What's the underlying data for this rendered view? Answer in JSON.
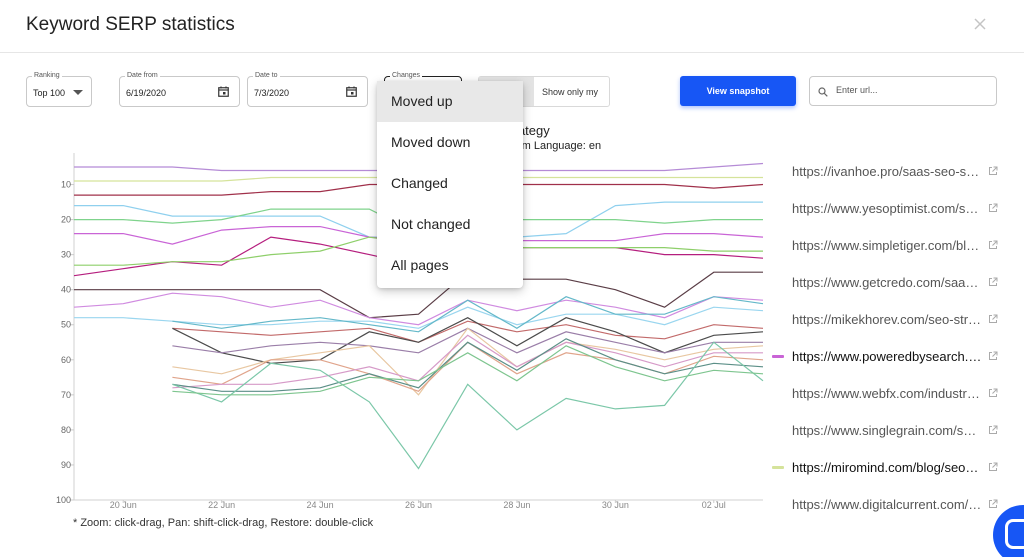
{
  "modal": {
    "title": "Keyword SERP statistics"
  },
  "filters": {
    "ranking": {
      "label": "Ranking",
      "value": "Top 100"
    },
    "date_from": {
      "label": "Date from",
      "value": "6/19/2020"
    },
    "date_to": {
      "label": "Date to",
      "value": "7/3/2020"
    },
    "changes": {
      "label": "Changes"
    },
    "toggle_label": "Show only my",
    "view_snapshot": "View snapshot",
    "search_placeholder": "Enter url..."
  },
  "changes_menu": {
    "items": [
      "Moved up",
      "Moved down",
      "Changed",
      "Not changed",
      "All pages"
    ],
    "selected": "Moved up"
  },
  "chart_header": {
    "title_fragment": "trategy",
    "subtitle_fragment": "com Language: en"
  },
  "chart_hint": "* Zoom: click-drag, Pan: shift-click-drag, Restore: double-click",
  "legend": [
    {
      "url": "https://ivanhoe.pro/saas-seo-strategy/",
      "color": "#b58bd6",
      "active": false
    },
    {
      "url": "https://www.yesoptimist.com/seo-strategy/",
      "color": "#8fd0ee",
      "active": false
    },
    {
      "url": "https://www.simpletiger.com/blog/saas-seo",
      "color": "#7fc49a",
      "active": false
    },
    {
      "url": "https://www.getcredo.com/saas-seo-strategy/",
      "color": "#c9a3c9",
      "active": false
    },
    {
      "url": "https://mikekhorev.com/seo-strategy",
      "color": "#9b97a8",
      "active": false
    },
    {
      "url": "https://www.poweredbysearch.com/blog/saas-seo/",
      "color": "#c964d6",
      "active": true
    },
    {
      "url": "https://www.webfx.com/industries/saas-seo",
      "color": "#e0a48b",
      "active": false
    },
    {
      "url": "https://www.singlegrain.com/saas/saas-seo/",
      "color": "#a7c0de",
      "active": false
    },
    {
      "url": "https://miromind.com/blog/seo-saas",
      "color": "#d5e39b",
      "active": true
    },
    {
      "url": "https://www.digitalcurrent.com/seo/",
      "color": "#b8a7cf",
      "active": false
    }
  ],
  "chart_data": {
    "type": "line",
    "x": [
      "19 Jun",
      "20 Jun",
      "21 Jun",
      "22 Jun",
      "23 Jun",
      "24 Jun",
      "25 Jun",
      "26 Jun",
      "27 Jun",
      "28 Jun",
      "29 Jun",
      "30 Jun",
      "01 Jul",
      "02 Jul",
      "03 Jul"
    ],
    "x_tick_labels": [
      "20 Jun",
      "22 Jun",
      "24 Jun",
      "26 Jun",
      "28 Jun",
      "30 Jun",
      "02 Jul"
    ],
    "y_tick_labels": [
      "10",
      "20",
      "30",
      "40",
      "50",
      "60",
      "70",
      "80",
      "90",
      "100"
    ],
    "ylim": [
      1,
      100
    ],
    "y_inverted": true,
    "grid": false,
    "series": [
      {
        "color": "#b58bd6",
        "values": [
          5,
          5,
          5,
          6,
          6,
          6,
          6,
          6,
          6,
          6,
          6,
          6,
          6,
          5,
          4
        ]
      },
      {
        "color": "#d5e39b",
        "values": [
          9,
          9,
          9,
          9,
          8,
          8,
          8,
          8,
          8,
          8,
          8,
          8,
          8,
          8,
          8
        ]
      },
      {
        "color": "#a0304a",
        "values": [
          13,
          13,
          13,
          13,
          12,
          12,
          10,
          10,
          10,
          10,
          10,
          10,
          10,
          11,
          10
        ]
      },
      {
        "color": "#8fd0ee",
        "values": [
          16,
          16,
          19,
          19,
          19,
          19,
          25,
          25,
          25,
          25,
          24,
          16,
          15,
          15,
          15
        ]
      },
      {
        "color": "#7fd38c",
        "values": [
          20,
          20,
          21,
          20,
          17,
          17,
          17,
          24,
          24,
          20,
          20,
          20,
          21,
          20,
          20
        ]
      },
      {
        "color": "#c964d6",
        "values": [
          24,
          24,
          27,
          23,
          22,
          22,
          25,
          26,
          26,
          26,
          26,
          26,
          24,
          24,
          25
        ]
      },
      {
        "color": "#b51e7e",
        "values": [
          36,
          34,
          32,
          33,
          25,
          27,
          30,
          33,
          28,
          28,
          28,
          28,
          30,
          30,
          31
        ]
      },
      {
        "color": "#8ecf6a",
        "values": [
          33,
          33,
          32,
          32,
          30,
          29,
          25,
          27,
          27,
          28,
          28,
          28,
          28,
          29,
          29
        ]
      },
      {
        "color": "#5a3d46",
        "values": [
          40,
          40,
          40,
          40,
          40,
          40,
          48,
          47,
          35,
          37,
          37,
          40,
          45,
          35,
          35
        ]
      },
      {
        "color": "#d08be0",
        "values": [
          45,
          44,
          41,
          42,
          45,
          43,
          48,
          50,
          43,
          46,
          43,
          45,
          48,
          42,
          43
        ]
      },
      {
        "color": "#9ad6ef",
        "values": [
          48,
          48,
          49,
          50,
          50,
          49,
          49,
          51,
          45,
          50,
          47,
          47,
          50,
          45,
          46
        ]
      },
      {
        "color": "#64b8c9",
        "values": [
          null,
          null,
          49,
          51,
          49,
          48,
          50,
          52,
          43,
          51,
          42,
          47,
          47,
          42,
          44
        ]
      },
      {
        "color": "#c26a6a",
        "values": [
          null,
          null,
          51,
          52,
          53,
          52,
          51,
          55,
          49,
          52,
          50,
          53,
          54,
          50,
          51
        ]
      },
      {
        "color": "#4b4b4b",
        "values": [
          null,
          null,
          51,
          58,
          61,
          60,
          52,
          55,
          48,
          56,
          48,
          52,
          58,
          53,
          52
        ]
      },
      {
        "color": "#9a7ea8",
        "values": [
          null,
          null,
          56,
          58,
          56,
          55,
          56,
          58,
          51,
          58,
          52,
          55,
          58,
          55,
          55
        ]
      },
      {
        "color": "#e8c7a1",
        "values": [
          null,
          null,
          62,
          64,
          60,
          58,
          56,
          70,
          51,
          62,
          55,
          57,
          60,
          57,
          56
        ]
      },
      {
        "color": "#e0a48b",
        "values": [
          null,
          null,
          65,
          67,
          60,
          60,
          64,
          69,
          55,
          64,
          58,
          60,
          64,
          59,
          60
        ]
      },
      {
        "color": "#d69ac8",
        "values": [
          null,
          null,
          68,
          67,
          67,
          65,
          62,
          66,
          53,
          62,
          55,
          58,
          62,
          58,
          58
        ]
      },
      {
        "color": "#5b8f87",
        "values": [
          null,
          null,
          67,
          69,
          69,
          68,
          64,
          68,
          55,
          63,
          54,
          60,
          64,
          61,
          62
        ]
      },
      {
        "color": "#7bc7a8",
        "values": [
          null,
          null,
          67,
          72,
          61,
          63,
          72,
          91,
          67,
          80,
          71,
          74,
          73,
          55,
          66
        ]
      },
      {
        "color": "#7ec58f",
        "values": [
          null,
          null,
          69,
          70,
          70,
          69,
          65,
          66,
          58,
          66,
          56,
          62,
          66,
          63,
          64
        ]
      }
    ]
  }
}
